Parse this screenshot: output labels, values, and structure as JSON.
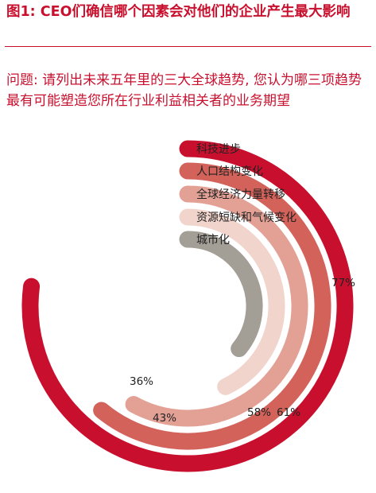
{
  "header": {
    "title": "图1: CEO们确信哪个因素会对他们的企业产生最大影响",
    "question": "问题: 请列出未来五年里的三大全球趋势, 您认为哪三项趋势最有可能塑造您所在行业利益相关者的业务期望"
  },
  "chart_data": {
    "type": "radial-bar",
    "categories": [
      "科技进步",
      "人口结构变化",
      "全球经济力量转移",
      "资源短缺和气候变化",
      "城市化"
    ],
    "values": [
      77,
      61,
      58,
      43,
      36
    ],
    "labels": [
      "77%",
      "61%",
      "58%",
      "43%",
      "36%"
    ],
    "colors": [
      "#c8102e",
      "#d3625a",
      "#e3a196",
      "#f1d4cb",
      "#a39e96"
    ],
    "unit": "%",
    "vmax": 100,
    "legend": "top-center"
  }
}
